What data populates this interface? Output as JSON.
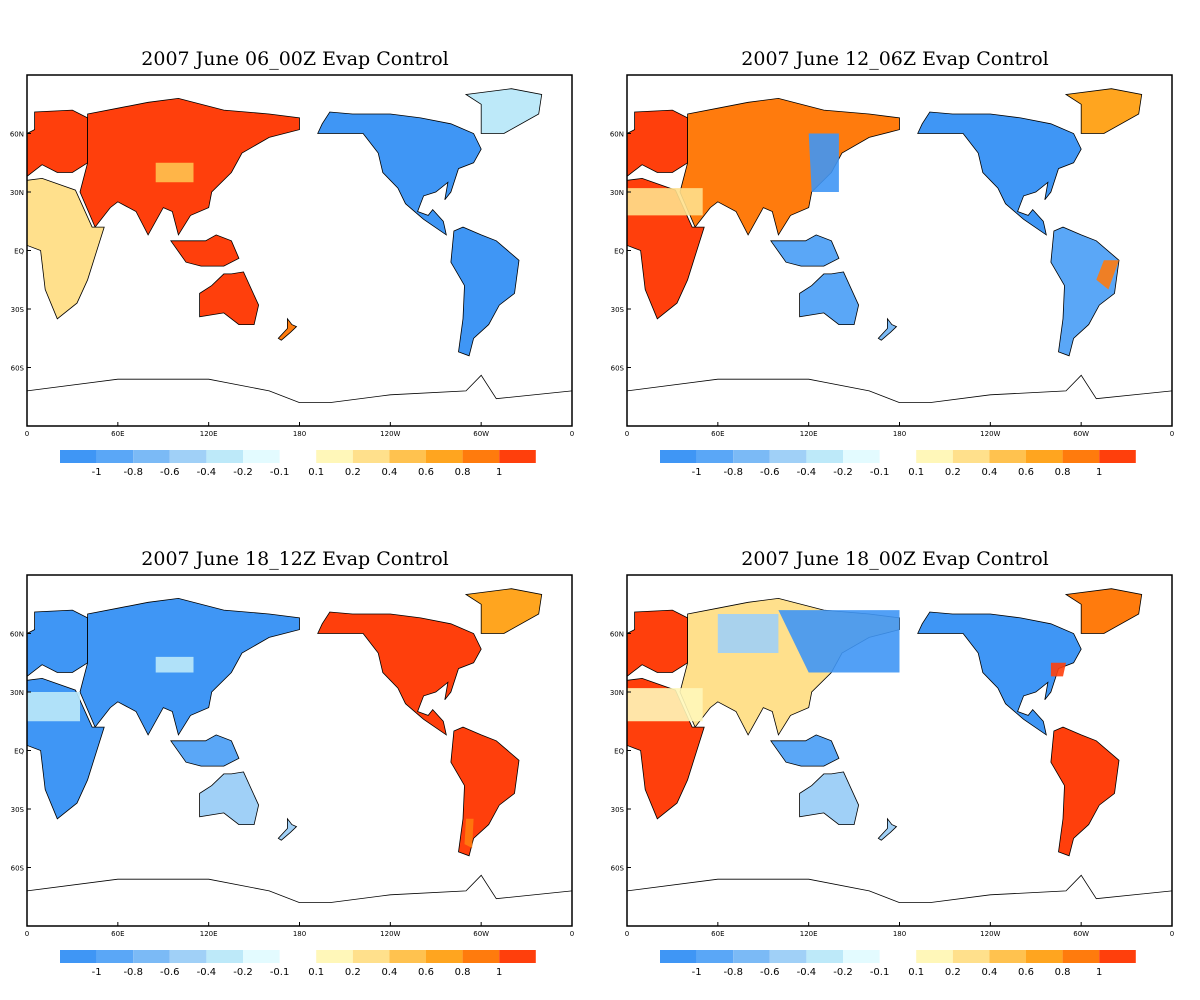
{
  "panels": [
    {
      "title": "2007 June 06_00Z Evap Control",
      "pattern": "a"
    },
    {
      "title": "2007 June 12_06Z Evap Control",
      "pattern": "b"
    },
    {
      "title": "2007 June 18_12Z Evap Control",
      "pattern": "c"
    },
    {
      "title": "2007 June 18_00Z Evap Control",
      "pattern": "d"
    }
  ],
  "axis": {
    "lon_ticks": [
      "0",
      "60E",
      "120E",
      "180",
      "120W",
      "60W",
      "0"
    ],
    "lat_ticks": [
      "60N",
      "30N",
      "EQ",
      "30S",
      "60S"
    ]
  },
  "colorbar": {
    "neg_colors": [
      "#3f96f5",
      "#5aa7f7",
      "#7bbaf6",
      "#a0d0f7",
      "#bde9f9",
      "#e3fbff"
    ],
    "pos_colors": [
      "#fff7b9",
      "#ffe08c",
      "#ffc24f",
      "#ffa51f",
      "#ff7b0d",
      "#ff3f0c"
    ],
    "neg_labels": [
      "-1",
      "-0.8",
      "-0.6",
      "-0.4",
      "-0.2",
      "-0.1"
    ],
    "pos_labels": [
      "0.1",
      "0.2",
      "0.4",
      "0.6",
      "0.8",
      "1"
    ]
  }
}
